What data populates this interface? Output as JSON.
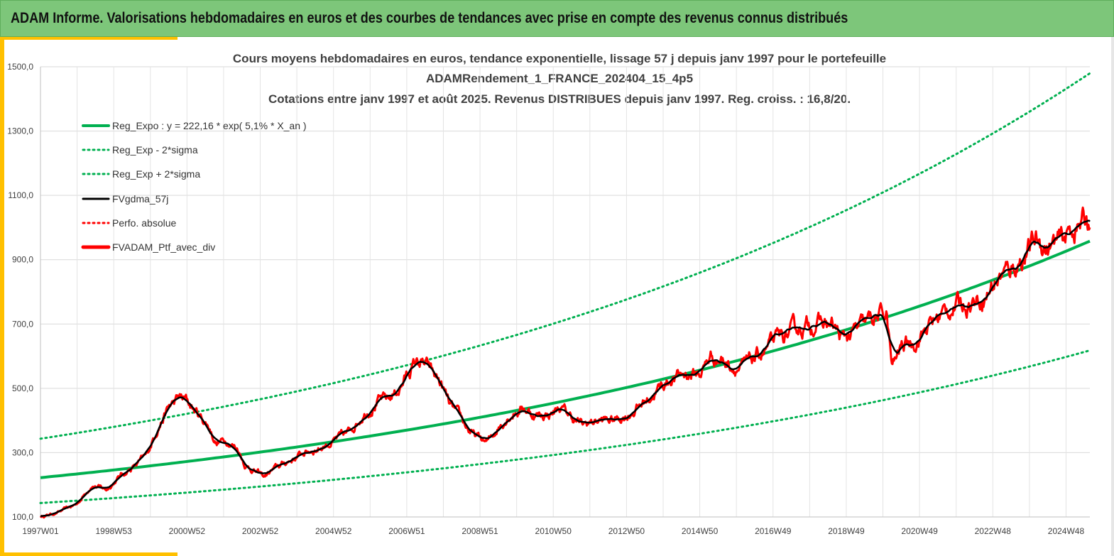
{
  "header": {
    "title": "ADAM Informe. Valorisations hebdomadaires en euros et des courbes de tendances avec prise en compte des revenus connus distribués"
  },
  "colors": {
    "header_bg": "#7dc67a",
    "accent": "#ffc000",
    "trend": "#00b050",
    "smoothed": "#000000",
    "portfolio": "#ff0000"
  },
  "chart_data": {
    "type": "line",
    "title_lines": [
      "Cours moyens hebdomadaires  en euros, tendance exponentielle, lissage 57 j depuis janv 1997 pour le portefeuille",
      "ADAMRendement_1_FRANCE_202404_15_4p5",
      "Cotations  entre janv 1997 et août  2025. Revenus DISTRIBUES depuis janv 1997. Reg. croiss. : 16,8/20."
    ],
    "xlabel": "",
    "ylabel": "",
    "ylim": [
      100,
      1500
    ],
    "y_ticks": [
      "100,0",
      "300,0",
      "500,0",
      "700,0",
      "900,0",
      "1100,0",
      "1300,0",
      "1500,0"
    ],
    "x_ticks": [
      {
        "label": "1997W01",
        "year": 1997.0
      },
      {
        "label": "1998W53",
        "year": 1999.0
      },
      {
        "label": "2000W52",
        "year": 2001.0
      },
      {
        "label": "2002W52",
        "year": 2003.0
      },
      {
        "label": "2004W52",
        "year": 2005.0
      },
      {
        "label": "2006W51",
        "year": 2007.0
      },
      {
        "label": "2008W51",
        "year": 2009.0
      },
      {
        "label": "2010W50",
        "year": 2011.0
      },
      {
        "label": "2012W50",
        "year": 2013.0
      },
      {
        "label": "2014W50",
        "year": 2015.0
      },
      {
        "label": "2016W49",
        "year": 2017.0
      },
      {
        "label": "2018W49",
        "year": 2019.0
      },
      {
        "label": "2020W49",
        "year": 2021.0
      },
      {
        "label": "2022W48",
        "year": 2023.0
      },
      {
        "label": "2024W48",
        "year": 2025.0
      }
    ],
    "xlim": [
      1997.0,
      2025.65
    ],
    "grid": true,
    "legend_position": "top-left",
    "regression": {
      "a": 222.16,
      "rate": 0.051
    },
    "series": [
      {
        "name": "Reg_Expo : y = 222,16 * exp( 5,1% *  X_an )",
        "style": "trend"
      },
      {
        "name": "Reg_Exp - 2*sigma",
        "style": "lower"
      },
      {
        "name": "Reg_Exp + 2*sigma",
        "style": "upper"
      },
      {
        "name": "FVgdma_57j",
        "style": "smoothed"
      },
      {
        "name": "Perfo. absolue",
        "style": "perfo"
      },
      {
        "name": "FVADAM_Ptf_avec_div",
        "style": "portfolio"
      }
    ],
    "sigma_bands": {
      "lower": {
        "factor": 0.645
      },
      "upper": {
        "factor": 1.545
      }
    },
    "portfolio_points": [
      [
        1997.0,
        100
      ],
      [
        1997.5,
        115
      ],
      [
        1998.0,
        140
      ],
      [
        1998.4,
        200
      ],
      [
        1998.8,
        185
      ],
      [
        1999.2,
        230
      ],
      [
        1999.6,
        260
      ],
      [
        1999.9,
        290
      ],
      [
        2000.2,
        380
      ],
      [
        2000.5,
        440
      ],
      [
        2000.8,
        470
      ],
      [
        2001.0,
        460
      ],
      [
        2001.3,
        420
      ],
      [
        2001.6,
        380
      ],
      [
        2001.8,
        330
      ],
      [
        2002.1,
        340
      ],
      [
        2002.4,
        310
      ],
      [
        2002.6,
        260
      ],
      [
        2002.9,
        240
      ],
      [
        2003.1,
        225
      ],
      [
        2003.4,
        250
      ],
      [
        2003.8,
        275
      ],
      [
        2004.2,
        300
      ],
      [
        2004.6,
        315
      ],
      [
        2005.0,
        335
      ],
      [
        2005.4,
        360
      ],
      [
        2005.8,
        420
      ],
      [
        2006.2,
        460
      ],
      [
        2006.5,
        465
      ],
      [
        2006.8,
        500
      ],
      [
        2007.1,
        560
      ],
      [
        2007.3,
        585
      ],
      [
        2007.6,
        560
      ],
      [
        2007.9,
        520
      ],
      [
        2008.2,
        440
      ],
      [
        2008.5,
        400
      ],
      [
        2008.8,
        355
      ],
      [
        2009.2,
        330
      ],
      [
        2009.5,
        380
      ],
      [
        2009.8,
        420
      ],
      [
        2010.2,
        440
      ],
      [
        2010.5,
        415
      ],
      [
        2010.9,
        420
      ],
      [
        2011.2,
        440
      ],
      [
        2011.5,
        410
      ],
      [
        2011.8,
        385
      ],
      [
        2012.2,
        400
      ],
      [
        2012.6,
        400
      ],
      [
        2013.0,
        415
      ],
      [
        2013.4,
        450
      ],
      [
        2013.8,
        490
      ],
      [
        2014.2,
        530
      ],
      [
        2014.6,
        545
      ],
      [
        2015.0,
        545
      ],
      [
        2015.3,
        600
      ],
      [
        2015.6,
        590
      ],
      [
        2015.9,
        570
      ],
      [
        2016.2,
        565
      ],
      [
        2016.6,
        600
      ],
      [
        2017.0,
        640
      ],
      [
        2017.4,
        665
      ],
      [
        2017.8,
        690
      ],
      [
        2018.2,
        705
      ],
      [
        2018.6,
        695
      ],
      [
        2018.9,
        650
      ],
      [
        2019.3,
        680
      ],
      [
        2019.8,
        720
      ],
      [
        2020.1,
        730
      ],
      [
        2020.25,
        560
      ],
      [
        2020.5,
        630
      ],
      [
        2020.9,
        650
      ],
      [
        2021.2,
        690
      ],
      [
        2021.6,
        730
      ],
      [
        2022.0,
        760
      ],
      [
        2022.4,
        770
      ],
      [
        2022.8,
        790
      ],
      [
        2023.1,
        840
      ],
      [
        2023.5,
        870
      ],
      [
        2023.9,
        920
      ],
      [
        2024.2,
        960
      ],
      [
        2024.5,
        940
      ],
      [
        2024.9,
        955
      ],
      [
        2025.2,
        1000
      ],
      [
        2025.65,
        1025
      ]
    ]
  }
}
